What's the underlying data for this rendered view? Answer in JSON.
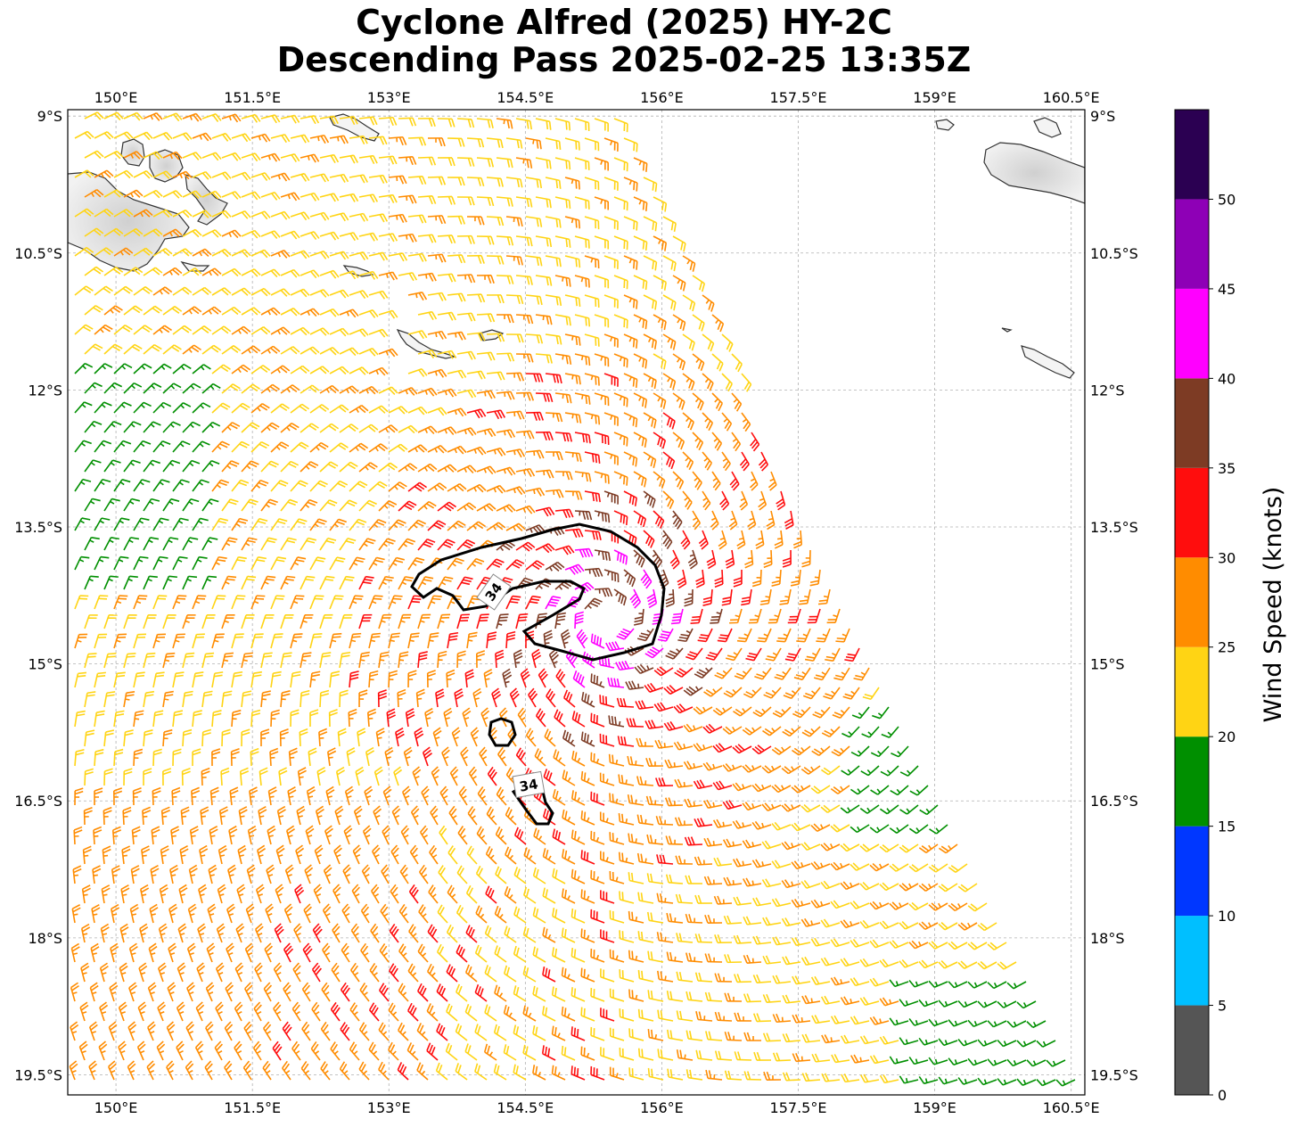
{
  "title": {
    "line1": "Cyclone Alfred (2025) HY-2C",
    "line2": "Descending Pass 2025-02-25 13:35Z"
  },
  "axes": {
    "lon_ticks": [
      "150°E",
      "151.5°E",
      "153°E",
      "154.5°E",
      "156°E",
      "157.5°E",
      "159°E",
      "160.5°E"
    ],
    "lat_ticks": [
      "9°S",
      "10.5°S",
      "12°S",
      "13.5°S",
      "15°S",
      "16.5°S",
      "18°S",
      "19.5°S"
    ],
    "lon_values": [
      150,
      151.5,
      153,
      154.5,
      156,
      157.5,
      159,
      160.5
    ],
    "lat_values": [
      9,
      10.5,
      12,
      13.5,
      15,
      16.5,
      18,
      19.5
    ],
    "extent": {
      "lon_min": 149.47,
      "lon_max": 160.65,
      "lat_min": 8.93,
      "lat_max": 19.72
    },
    "grid": true
  },
  "colorbar": {
    "label": "Wind Speed (knots)",
    "ticks": [
      "0",
      "5",
      "10",
      "15",
      "20",
      "25",
      "30",
      "35",
      "40",
      "45",
      "50"
    ],
    "bins": [
      {
        "min": 0,
        "max": 5,
        "color": "#555555"
      },
      {
        "min": 5,
        "max": 10,
        "color": "#00bfff"
      },
      {
        "min": 10,
        "max": 15,
        "color": "#0037ff"
      },
      {
        "min": 15,
        "max": 20,
        "color": "#008f00"
      },
      {
        "min": 20,
        "max": 25,
        "color": "#ffd414"
      },
      {
        "min": 25,
        "max": 30,
        "color": "#ff8c00"
      },
      {
        "min": 30,
        "max": 35,
        "color": "#ff0d0d"
      },
      {
        "min": 35,
        "max": 40,
        "color": "#7d3b24"
      },
      {
        "min": 40,
        "max": 45,
        "color": "#ff00ff"
      },
      {
        "min": 45,
        "max": 50,
        "color": "#8e00b6"
      },
      {
        "min": 50,
        "max": 55,
        "color": "#2b0052"
      }
    ]
  },
  "contour": {
    "level": "34",
    "labels": [
      "34",
      "34"
    ]
  },
  "cyclone_center": {
    "lon": 155.4,
    "lat": 14.5
  },
  "swath": {
    "left_edge_lon": 149.47,
    "right_edge_top_lon": 155.5,
    "right_edge_bottom_lon": 160.65
  }
}
